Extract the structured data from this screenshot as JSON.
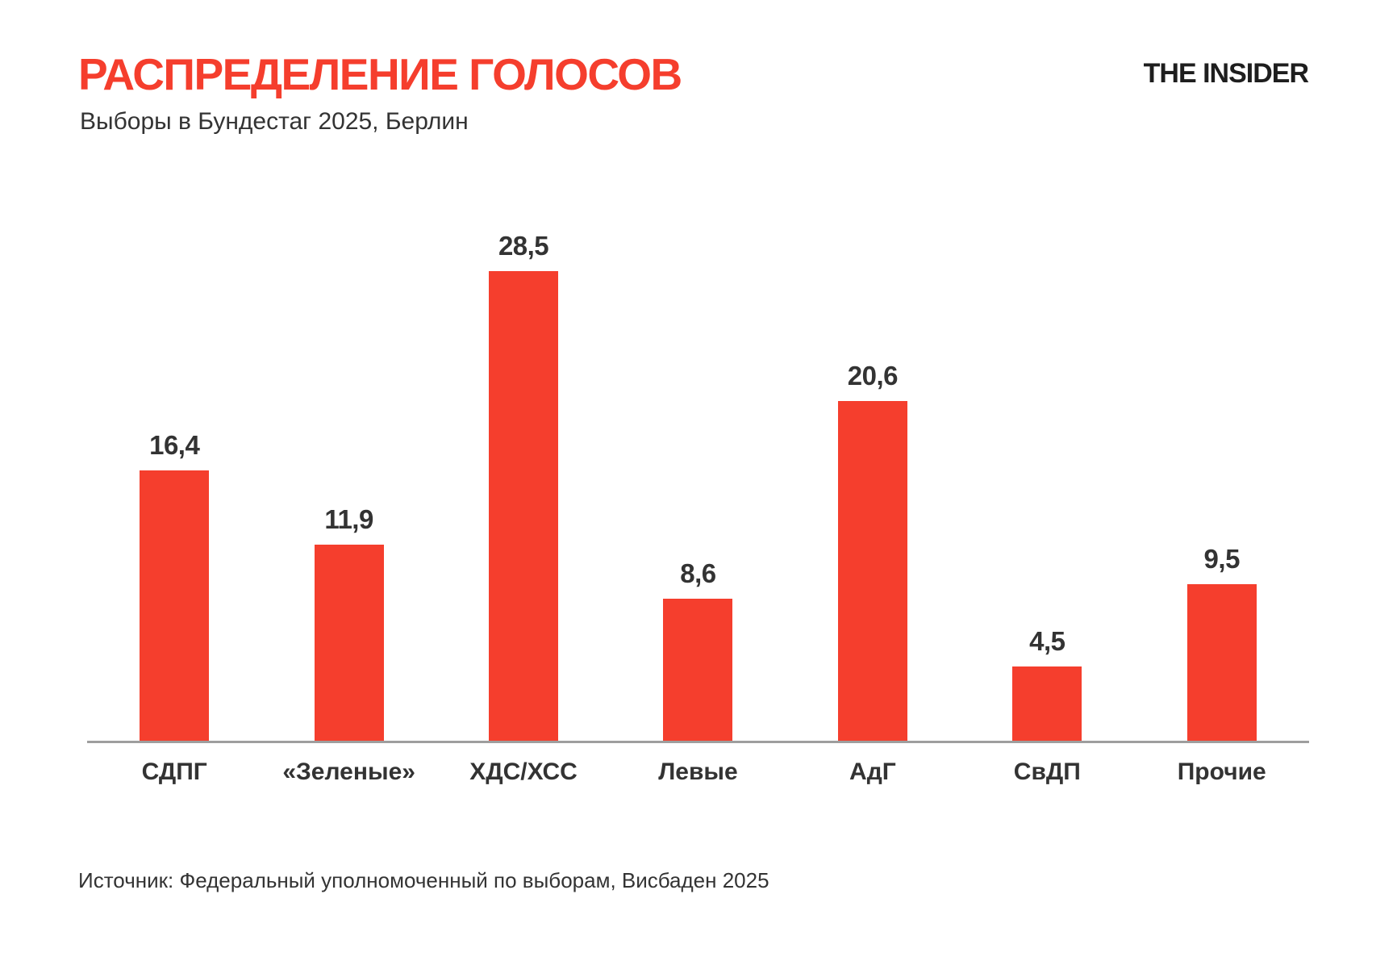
{
  "header": {
    "title": "РАСПРЕДЕЛЕНИЕ ГОЛОСОВ",
    "subtitle": "Выборы в Бундестаг 2025, Берлин",
    "logo": "THE INSIDER",
    "title_color": "#F53E2D",
    "logo_color": "#1E1E1E"
  },
  "chart_data": {
    "type": "bar",
    "title": "РАСПРЕДЕЛЕНИЕ ГОЛОСОВ",
    "subtitle": "Выборы в Бундестаг 2025, Берлин",
    "categories": [
      "СДПГ",
      "«Зеленые»",
      "ХДС/ХСС",
      "Левые",
      "АдГ",
      "СвДП",
      "Прочие"
    ],
    "values": [
      16.4,
      11.9,
      28.5,
      8.6,
      20.6,
      4.5,
      9.5
    ],
    "value_labels": [
      "16,4",
      "11,9",
      "28,5",
      "8,6",
      "20,6",
      "4,5",
      "9,5"
    ],
    "xlabel": "",
    "ylabel": "",
    "ylim": [
      0,
      30
    ],
    "grid": false,
    "legend": "none",
    "bar_color": "#F53E2D",
    "value_label_color": "#333333",
    "category_label_color": "#333333",
    "axis_line_color": "#9E9E9E"
  },
  "footer": {
    "source": "Источник: Федеральный уполномоченный по выборам, Висбаден 2025"
  }
}
